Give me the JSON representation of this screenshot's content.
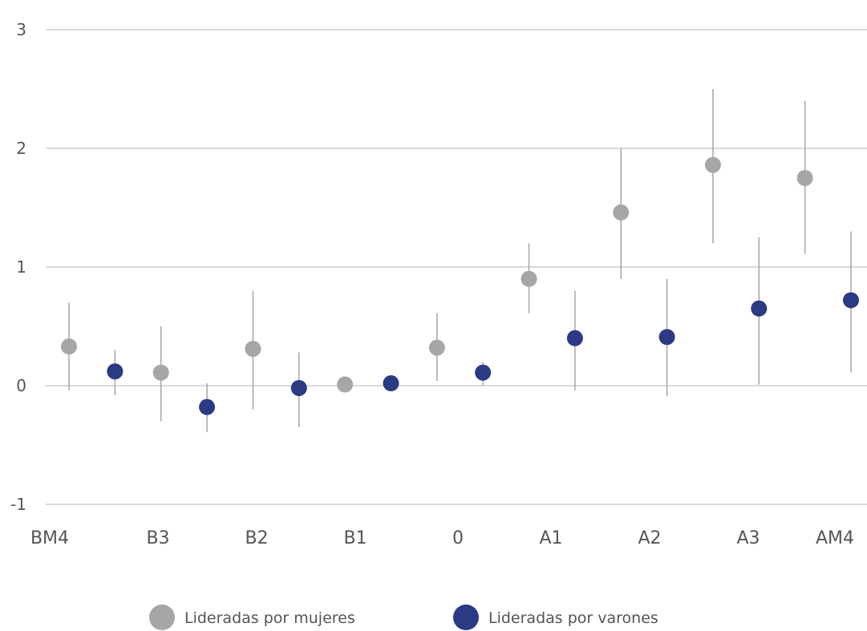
{
  "chart_data": {
    "type": "scatter",
    "categories": [
      "BM4",
      "B3",
      "B2",
      "B1",
      "0",
      "A1",
      "A2",
      "A3",
      "AM4"
    ],
    "ylim": [
      -1,
      3
    ],
    "yticks": [
      -1,
      0,
      1,
      2,
      3
    ],
    "grid": true,
    "error_bars": true,
    "legend_position": "bottom-center",
    "series": [
      {
        "name": "Lideradas por mujeres",
        "color": "#a6a6a6",
        "values": [
          0.33,
          0.11,
          0.31,
          0.01,
          0.32,
          0.9,
          1.46,
          1.86,
          1.75
        ],
        "lower": [
          -0.04,
          -0.3,
          -0.2,
          0.01,
          0.04,
          0.61,
          0.9,
          1.2,
          1.11
        ],
        "upper": [
          0.7,
          0.5,
          0.8,
          0.01,
          0.61,
          1.2,
          2.0,
          2.5,
          2.4
        ]
      },
      {
        "name": "Lideradas por varones",
        "color": "#2b3a82",
        "values": [
          0.12,
          -0.18,
          -0.02,
          0.02,
          0.11,
          0.4,
          0.41,
          0.65,
          0.72
        ],
        "lower": [
          -0.08,
          -0.39,
          -0.35,
          0.02,
          0.0,
          -0.04,
          -0.09,
          0.01,
          0.11
        ],
        "upper": [
          0.3,
          0.02,
          0.28,
          0.02,
          0.2,
          0.8,
          0.9,
          1.25,
          1.3
        ]
      }
    ]
  }
}
